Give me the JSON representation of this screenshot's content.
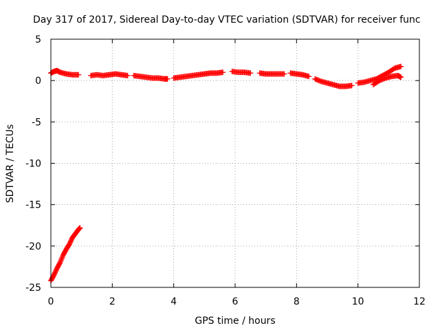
{
  "chart_data": {
    "type": "scatter",
    "title": "Day 317 of 2017, Sidereal Day-to-day VTEC variation (SDTVAR) for receiver func",
    "xlabel": "GPS time / hours",
    "ylabel": "SDTVAR / TECUs",
    "xlim": [
      0,
      12
    ],
    "ylim": [
      -25,
      5
    ],
    "xticks": [
      0,
      2,
      4,
      6,
      8,
      10,
      12
    ],
    "yticks": [
      5,
      0,
      -5,
      -10,
      -15,
      -20,
      -25
    ],
    "xtick_labels": [
      "0",
      "2",
      "4",
      "6",
      "8",
      "10",
      "12"
    ],
    "ytick_labels": [
      "5",
      "0",
      "-5",
      "-10",
      "-15",
      "-20",
      "-25"
    ],
    "grid": true,
    "marker": "+",
    "color": "#ff0000",
    "series": [
      {
        "name": "SDTVAR",
        "segments": [
          {
            "x": [
              0.0,
              0.1,
              0.2,
              0.3,
              0.4,
              0.5,
              0.6,
              0.7,
              0.8,
              0.9,
              0.95
            ],
            "y": [
              -24.2,
              -23.5,
              -22.7,
              -22.0,
              -21.1,
              -20.4,
              -19.8,
              -19.0,
              -18.5,
              -18.0,
              -17.8
            ]
          },
          {
            "x": [
              0.0,
              0.1,
              0.2,
              0.3,
              0.5,
              0.7,
              0.9
            ],
            "y": [
              0.9,
              1.1,
              1.2,
              1.0,
              0.8,
              0.7,
              0.7
            ]
          },
          {
            "x": [
              1.3,
              1.5,
              1.7,
              1.9,
              2.1,
              2.3,
              2.5
            ],
            "y": [
              0.6,
              0.7,
              0.6,
              0.7,
              0.8,
              0.7,
              0.6
            ]
          },
          {
            "x": [
              2.7,
              2.9,
              3.1,
              3.3,
              3.5,
              3.7,
              3.8
            ],
            "y": [
              0.6,
              0.5,
              0.4,
              0.3,
              0.3,
              0.2,
              0.2
            ]
          },
          {
            "x": [
              4.0,
              4.2,
              4.4,
              4.6,
              4.8,
              5.0,
              5.2,
              5.4,
              5.6
            ],
            "y": [
              0.3,
              0.4,
              0.5,
              0.6,
              0.7,
              0.8,
              0.9,
              0.9,
              1.0
            ]
          },
          {
            "x": [
              5.9,
              6.1,
              6.3,
              6.5
            ],
            "y": [
              1.1,
              1.0,
              1.0,
              0.9
            ]
          },
          {
            "x": [
              6.8,
              7.0,
              7.2,
              7.4,
              7.6
            ],
            "y": [
              0.9,
              0.8,
              0.8,
              0.8,
              0.8
            ]
          },
          {
            "x": [
              7.8,
              8.0,
              8.2,
              8.4
            ],
            "y": [
              0.9,
              0.8,
              0.7,
              0.5
            ]
          },
          {
            "x": [
              8.6,
              8.8,
              9.0,
              9.2,
              9.4,
              9.6,
              9.8
            ],
            "y": [
              0.2,
              -0.1,
              -0.3,
              -0.5,
              -0.7,
              -0.7,
              -0.6
            ]
          },
          {
            "x": [
              10.0,
              10.2,
              10.4,
              10.6,
              10.8,
              11.0,
              11.2,
              11.4
            ],
            "y": [
              -0.3,
              -0.2,
              0.0,
              0.2,
              0.6,
              1.0,
              1.5,
              1.7
            ]
          },
          {
            "x": [
              10.5,
              10.7,
              10.9,
              11.1,
              11.3,
              11.4
            ],
            "y": [
              -0.5,
              0.0,
              0.3,
              0.5,
              0.6,
              0.4
            ]
          }
        ]
      }
    ]
  }
}
